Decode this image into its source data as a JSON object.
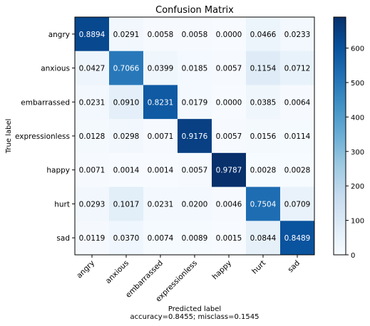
{
  "chart_data": {
    "type": "heatmap",
    "title": "Confusion Matrix",
    "ylabel": "True label",
    "xlabel": "Predicted label",
    "xlabel_note": "accuracy=0.8455; misclass=0.1545",
    "classes": [
      "angry",
      "anxious",
      "embarrassed",
      "expressionless",
      "happy",
      "hurt",
      "sad"
    ],
    "values": [
      [
        0.8894,
        0.0291,
        0.0058,
        0.0058,
        0.0,
        0.0466,
        0.0233
      ],
      [
        0.0427,
        0.7066,
        0.0399,
        0.0185,
        0.0057,
        0.1154,
        0.0712
      ],
      [
        0.0231,
        0.091,
        0.8231,
        0.0179,
        0.0,
        0.0385,
        0.0064
      ],
      [
        0.0128,
        0.0298,
        0.0071,
        0.9176,
        0.0057,
        0.0156,
        0.0114
      ],
      [
        0.0071,
        0.0014,
        0.0014,
        0.0057,
        0.9787,
        0.0028,
        0.0028
      ],
      [
        0.0293,
        0.1017,
        0.0231,
        0.02,
        0.0046,
        0.7504,
        0.0709
      ],
      [
        0.0119,
        0.037,
        0.0074,
        0.0089,
        0.0015,
        0.0844,
        0.8489
      ]
    ],
    "cell_labels": [
      [
        "0.8894",
        "0.0291",
        "0.0058",
        "0.0058",
        "0.0000",
        "0.0466",
        "0.0233"
      ],
      [
        "0.0427",
        "0.7066",
        "0.0399",
        "0.0185",
        "0.0057",
        "0.1154",
        "0.0712"
      ],
      [
        "0.0231",
        "0.0910",
        "0.8231",
        "0.0179",
        "0.0000",
        "0.0385",
        "0.0064"
      ],
      [
        "0.0128",
        "0.0298",
        "0.0071",
        "0.9176",
        "0.0057",
        "0.0156",
        "0.0114"
      ],
      [
        "0.0071",
        "0.0014",
        "0.0014",
        "0.0057",
        "0.9787",
        "0.0028",
        "0.0028"
      ],
      [
        "0.0293",
        "0.1017",
        "0.0231",
        "0.0200",
        "0.0046",
        "0.7504",
        "0.0709"
      ],
      [
        "0.0119",
        "0.0370",
        "0.0074",
        "0.0089",
        "0.0015",
        "0.0844",
        "0.8489"
      ]
    ],
    "colorbar": {
      "min": 0,
      "max": 690,
      "ticks": [
        0,
        100,
        200,
        300,
        400,
        500,
        600
      ],
      "tick_labels": [
        "0",
        "100",
        "200",
        "300",
        "400",
        "500",
        "600"
      ],
      "colormap": "Blues"
    },
    "grid": false,
    "legend": "none"
  }
}
